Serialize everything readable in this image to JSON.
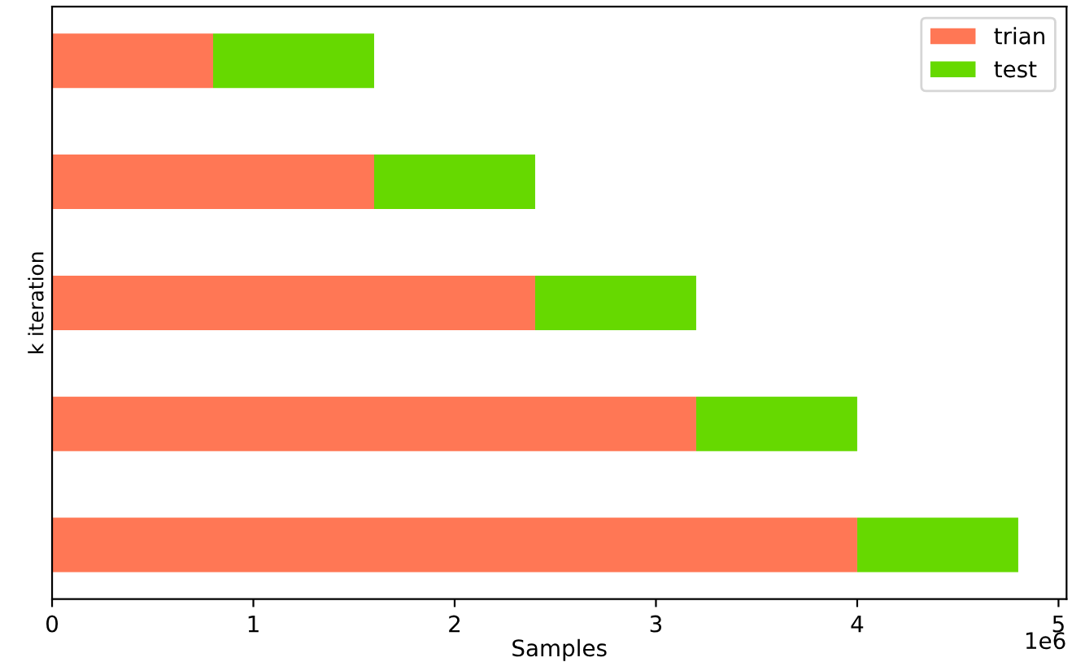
{
  "chart_data": {
    "type": "bar",
    "orientation": "horizontal",
    "stacked": true,
    "xlabel": "Samples",
    "ylabel": "k iteration",
    "categories": [
      null,
      null,
      null,
      null,
      null
    ],
    "series": [
      {
        "name": "trian",
        "color": "#ff7755",
        "values": [
          0.8,
          1.6,
          2.4,
          3.2,
          4.0
        ]
      },
      {
        "name": "test",
        "color": "#66d900",
        "values": [
          0.8,
          0.8,
          0.8,
          0.8,
          0.8
        ]
      }
    ],
    "xlim": [
      0,
      5.04
    ],
    "xticks": [
      0,
      1,
      2,
      3,
      4,
      5
    ],
    "annotations": [
      "1e6"
    ],
    "tick_labels": "x",
    "legend": "top right",
    "grid": false
  }
}
